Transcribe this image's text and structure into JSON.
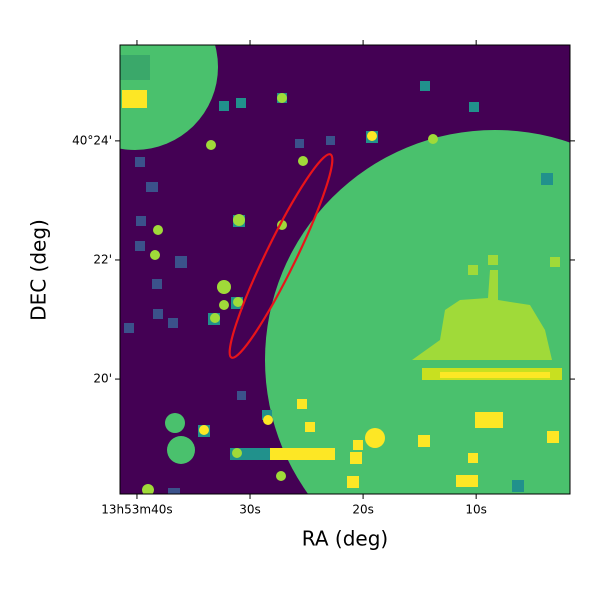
{
  "chart_data": {
    "type": "image",
    "x_label": "RA (deg)",
    "y_label": "DEC (deg)",
    "xlim": [
      41.5,
      1.7
    ],
    "xticks": [
      {
        "value": 40,
        "label": "13h53m40s"
      },
      {
        "value": 30,
        "label": "30s"
      },
      {
        "value": 20,
        "label": "20s"
      },
      {
        "value": 10,
        "label": "10s"
      }
    ],
    "ylim": [
      18.07,
      25.61
    ],
    "yticks": [
      {
        "value": 24,
        "label": "40°24'"
      },
      {
        "value": 22,
        "label": "22'"
      },
      {
        "value": 20,
        "label": "20'"
      }
    ],
    "colormap": [
      "#440154",
      "#3b528b",
      "#21918c",
      "#4ac16d",
      "#a0da39",
      "#fde725"
    ],
    "ellipse_color": "#e8141a"
  }
}
